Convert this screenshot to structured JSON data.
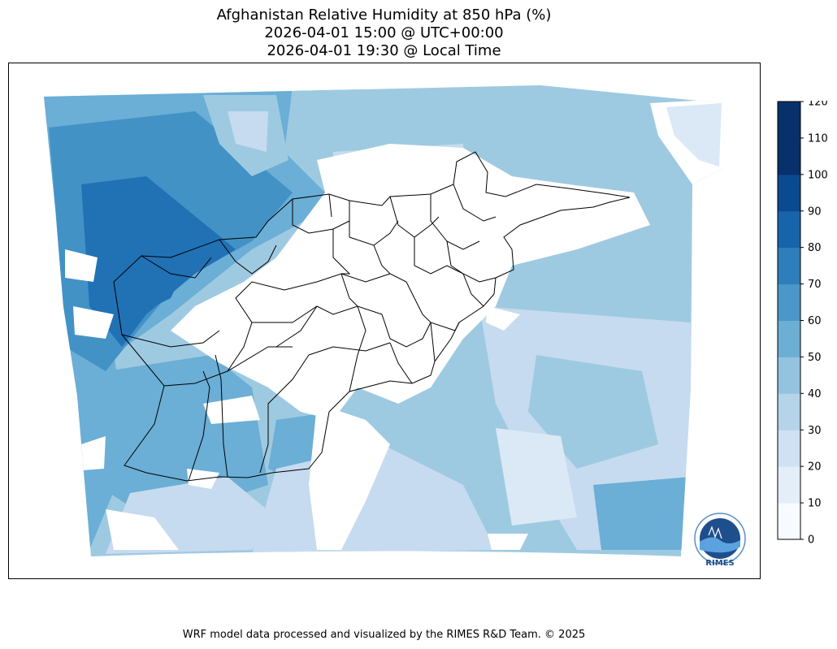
{
  "title": {
    "line1": "Afghanistan Relative Humidity at 850 hPa (%)",
    "line2": "2026-04-01 15:00 @ UTC+00:00",
    "line3": "2026-04-01 19:30 @ Local Time"
  },
  "colorbar": {
    "ticks": [
      "0",
      "10",
      "20",
      "30",
      "40",
      "50",
      "60",
      "70",
      "80",
      "90",
      "100",
      "110",
      "120"
    ],
    "colors": [
      "#f7fbff",
      "#e3eef9",
      "#cfe1f2",
      "#b5d4e9",
      "#93c3df",
      "#6daed5",
      "#4b97c9",
      "#2f7ebc",
      "#1864aa",
      "#0a4a90",
      "#08306b",
      "#08306b"
    ]
  },
  "logo": {
    "text": "RIMES"
  },
  "footer": "WRF model data processed and visualized by the RIMES R&D Team. © 2025"
}
